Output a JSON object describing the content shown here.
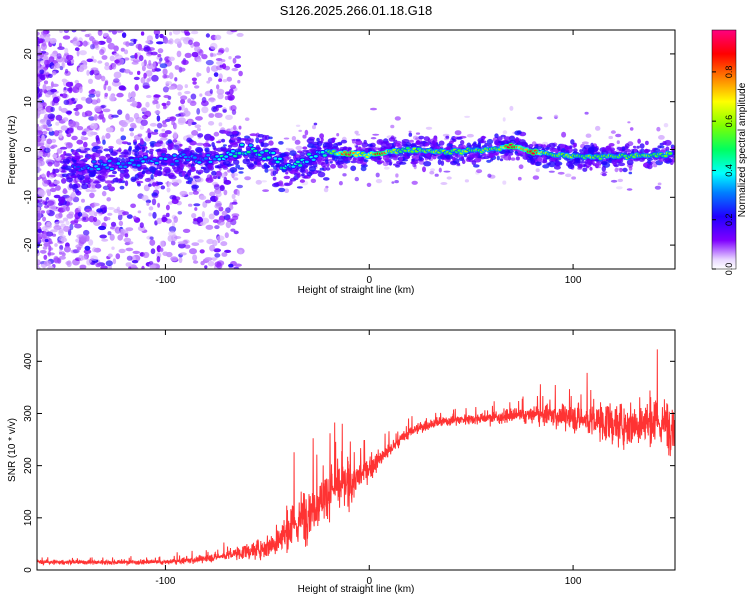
{
  "title": "S126.2025.266.01.18.G18",
  "chart_data": [
    {
      "type": "heatmap",
      "xlabel": "Height of straight line (km)",
      "ylabel": "Frequency (Hz)",
      "xlim": [
        -163,
        150
      ],
      "ylim": [
        -25,
        25
      ],
      "x_ticks": [
        -100,
        0,
        100
      ],
      "y_ticks": [
        -20,
        -10,
        0,
        10,
        20
      ],
      "colorbar": {
        "label": "Normalized spectral amplitude",
        "range": [
          0.0,
          0.97
        ],
        "ticks": [
          0.0,
          0.2,
          0.4,
          0.6,
          0.8
        ]
      },
      "ridge": {
        "description_points_x": [
          -140,
          -120,
          -100,
          -80,
          -70,
          -60,
          -50,
          -40,
          -30,
          -20,
          -10,
          0,
          20,
          40,
          60,
          70,
          80,
          100,
          120,
          145
        ],
        "description_points_y": [
          -4,
          -3,
          -2,
          -2,
          -1,
          0,
          -1,
          -4,
          -2,
          -0.5,
          -1,
          -1,
          0,
          -0.5,
          0,
          0.8,
          -0.5,
          -1.5,
          -1.5,
          -1
        ],
        "peak_amplitude_x": [
          -10,
          5,
          70,
          80
        ]
      }
    },
    {
      "type": "line",
      "xlabel": "Height of straight line (km)",
      "ylabel": "SNR (10 * v/v)",
      "xlim": [
        -163,
        150
      ],
      "ylim": [
        0,
        460
      ],
      "x_ticks": [
        -100,
        0,
        100
      ],
      "y_ticks": [
        0,
        100,
        200,
        300,
        400
      ],
      "color": "#ff3333",
      "series": [
        {
          "name": "SNR",
          "x": [
            -163,
            -140,
            -120,
            -100,
            -90,
            -80,
            -70,
            -60,
            -50,
            -45,
            -40,
            -35,
            -30,
            -25,
            -20,
            -15,
            -10,
            -5,
            0,
            10,
            20,
            30,
            40,
            50,
            60,
            70,
            80,
            90,
            100,
            110,
            120,
            130,
            140,
            150
          ],
          "base": [
            15,
            15,
            15,
            15,
            18,
            22,
            28,
            35,
            45,
            55,
            70,
            90,
            115,
            130,
            150,
            160,
            165,
            180,
            195,
            230,
            265,
            280,
            287,
            290,
            292,
            295,
            297,
            297,
            292,
            285,
            280,
            280,
            278,
            280
          ],
          "noise": [
            6,
            6,
            6,
            6,
            8,
            10,
            12,
            20,
            30,
            40,
            55,
            70,
            70,
            60,
            60,
            55,
            60,
            40,
            30,
            20,
            15,
            14,
            14,
            14,
            16,
            18,
            22,
            28,
            35,
            45,
            55,
            60,
            65,
            65
          ]
        }
      ]
    }
  ]
}
